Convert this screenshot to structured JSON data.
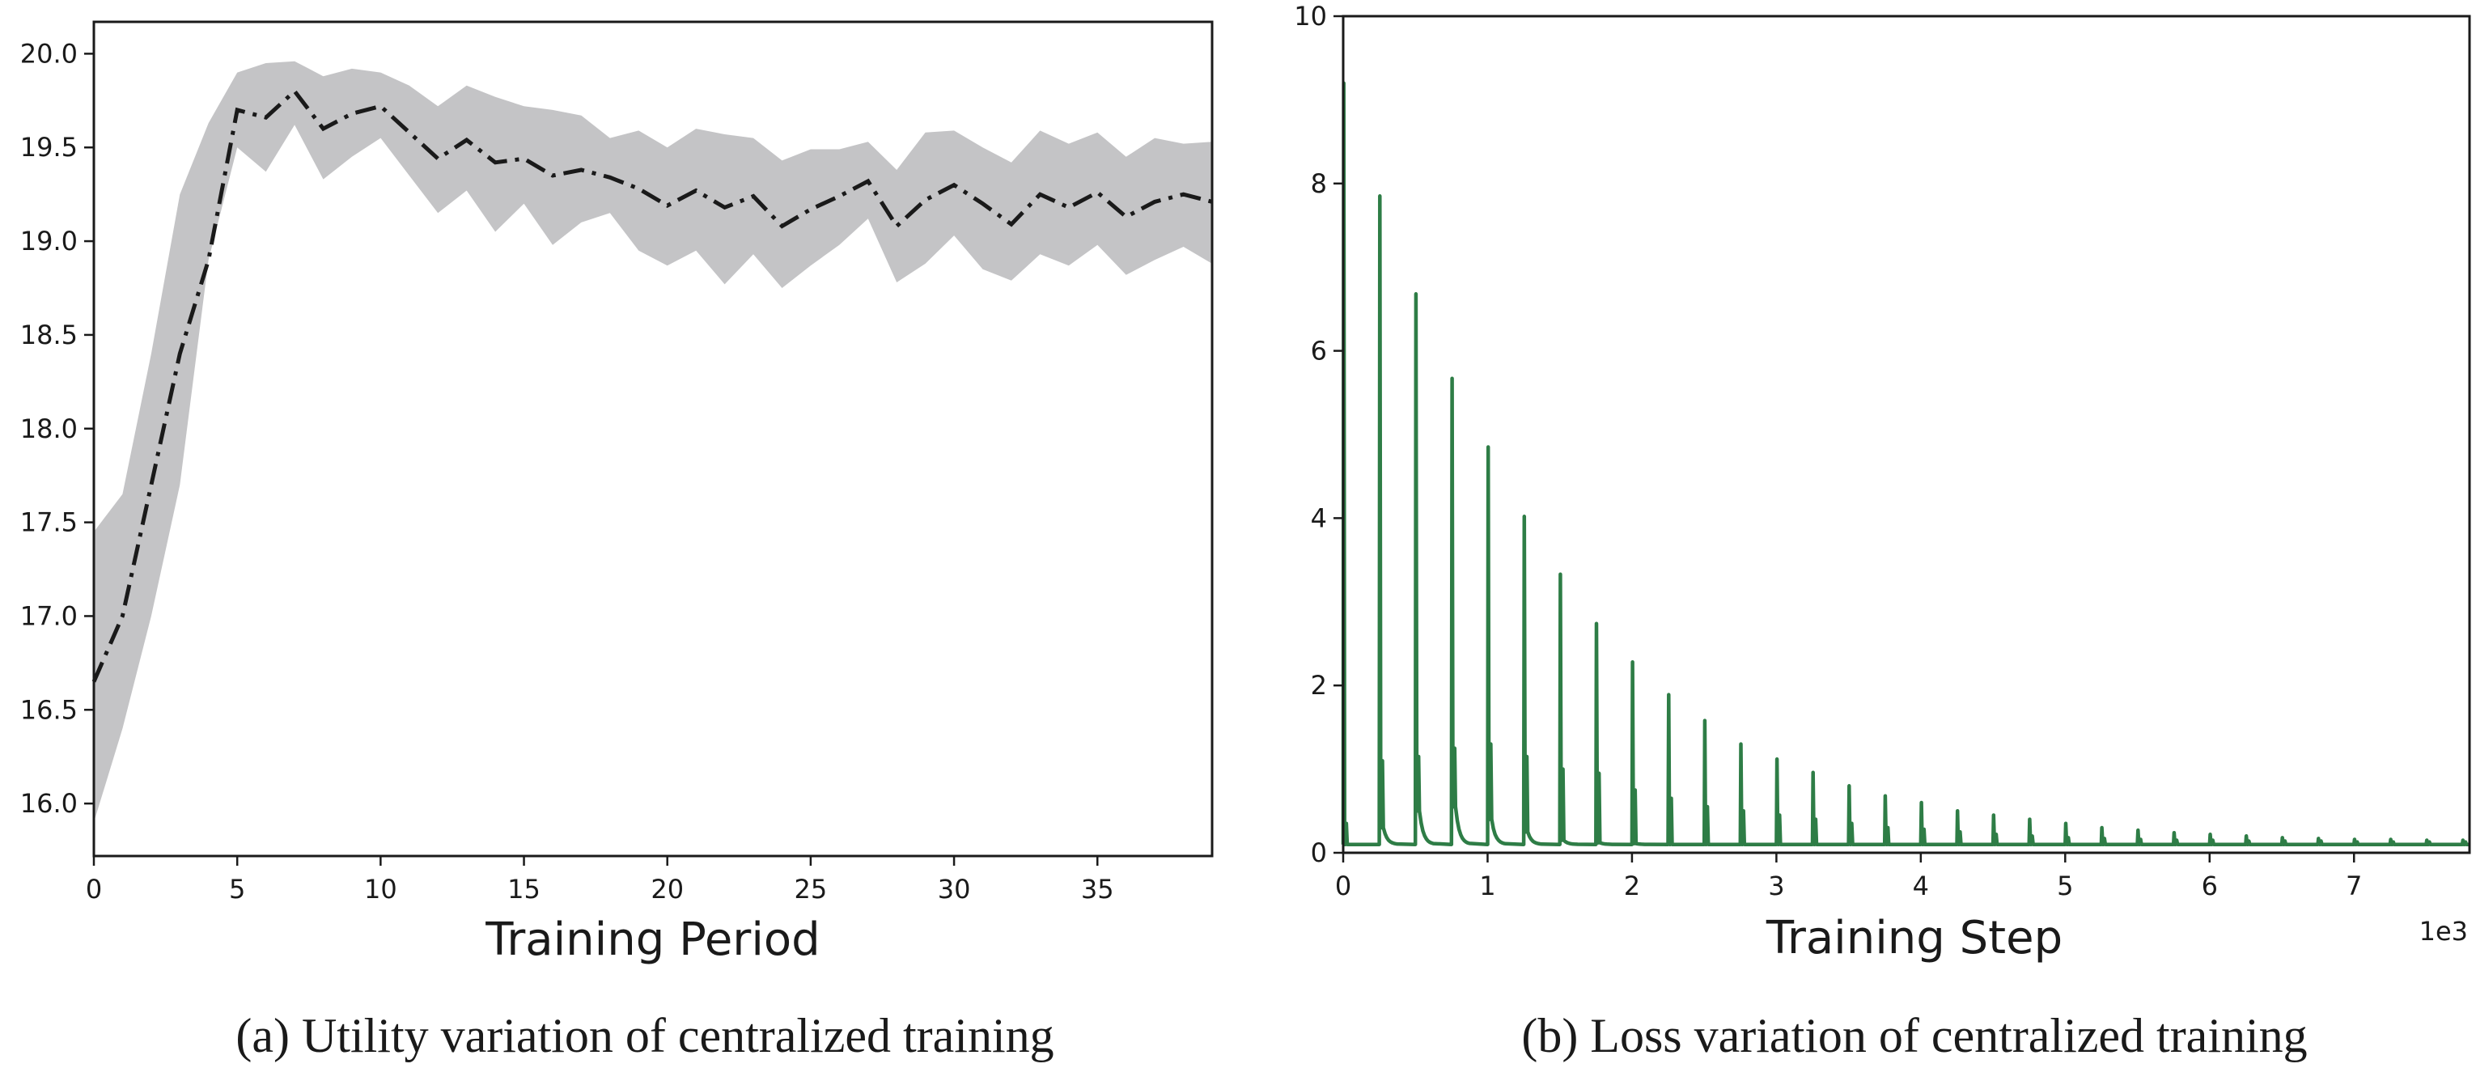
{
  "chart_data": [
    {
      "type": "line",
      "caption": "(a)  Utility variation of centralized training",
      "xlabel": "Training Period",
      "ylabel": "",
      "xlim": [
        0,
        39
      ],
      "ylim": [
        15.72,
        20.17
      ],
      "x_ticks": [
        0,
        5,
        10,
        15,
        20,
        25,
        30,
        35
      ],
      "y_ticks": [
        16.0,
        16.5,
        17.0,
        17.5,
        18.0,
        18.5,
        19.0,
        19.5,
        20.0
      ],
      "y_tick_labels": [
        "16.0",
        "16.5",
        "17.0",
        "17.5",
        "18.0",
        "18.5",
        "19.0",
        "19.5",
        "20.0"
      ],
      "grid": false,
      "line_style": "dash-dot",
      "line_color": "#1a1a1a",
      "band_color": "#c4c4c6",
      "series": [
        {
          "x": [
            0,
            1,
            2,
            3,
            4,
            5,
            6,
            7,
            8,
            9,
            10,
            11,
            12,
            13,
            14,
            15,
            16,
            17,
            18,
            19,
            20,
            21,
            22,
            23,
            24,
            25,
            26,
            27,
            28,
            29,
            30,
            31,
            32,
            33,
            34,
            35,
            36,
            37,
            38,
            39
          ],
          "mean": [
            16.65,
            17.0,
            17.7,
            18.4,
            18.9,
            19.7,
            19.66,
            19.8,
            19.6,
            19.68,
            19.72,
            19.58,
            19.44,
            19.54,
            19.42,
            19.44,
            19.35,
            19.38,
            19.34,
            19.28,
            19.19,
            19.27,
            19.18,
            19.24,
            19.08,
            19.17,
            19.24,
            19.32,
            19.08,
            19.22,
            19.3,
            19.2,
            19.09,
            19.25,
            19.18,
            19.26,
            19.13,
            19.21,
            19.25,
            19.21
          ],
          "lower": [
            15.9,
            16.4,
            17.0,
            17.7,
            18.9,
            19.5,
            19.37,
            19.62,
            19.33,
            19.45,
            19.55,
            19.35,
            19.15,
            19.27,
            19.05,
            19.2,
            18.98,
            19.1,
            19.15,
            18.95,
            18.87,
            18.95,
            18.77,
            18.93,
            18.75,
            18.87,
            18.98,
            19.12,
            18.78,
            18.88,
            19.03,
            18.85,
            18.79,
            18.93,
            18.87,
            18.98,
            18.82,
            18.9,
            18.97,
            18.88
          ],
          "upper": [
            17.45,
            17.65,
            18.4,
            19.25,
            19.63,
            19.9,
            19.95,
            19.96,
            19.88,
            19.92,
            19.9,
            19.83,
            19.72,
            19.83,
            19.77,
            19.72,
            19.7,
            19.67,
            19.55,
            19.59,
            19.5,
            19.6,
            19.57,
            19.55,
            19.43,
            19.49,
            19.49,
            19.53,
            19.38,
            19.58,
            19.59,
            19.5,
            19.42,
            19.59,
            19.52,
            19.58,
            19.45,
            19.55,
            19.52,
            19.53
          ]
        }
      ]
    },
    {
      "type": "line",
      "caption": "(b)  Loss variation of centralized training",
      "xlabel": "Training Step",
      "ylabel": "",
      "x_offset_label": "1e3",
      "xlim": [
        0,
        7.8
      ],
      "ylim": [
        0,
        10
      ],
      "x_ticks": [
        0,
        1,
        2,
        3,
        4,
        5,
        6,
        7
      ],
      "y_ticks": [
        0,
        2,
        4,
        6,
        8,
        10
      ],
      "y_tick_labels": [
        "0",
        "2",
        "4",
        "6",
        "8",
        "10"
      ],
      "grid": false,
      "line_color": "#2e7d46",
      "spike_period": 0.25,
      "series": [
        {
          "spike_x": [
            0,
            0.25,
            0.5,
            0.75,
            1.0,
            1.25,
            1.5,
            1.75,
            2.0,
            2.25,
            2.5,
            2.75,
            3.0,
            3.25,
            3.5,
            3.75,
            4.0,
            4.25,
            4.5,
            4.75,
            5.0,
            5.25,
            5.5,
            5.75,
            6.0,
            6.25,
            6.5,
            6.75,
            7.0,
            7.25,
            7.5,
            7.75
          ],
          "spike_peak": [
            9.2,
            7.85,
            6.68,
            5.67,
            4.85,
            4.02,
            3.33,
            2.74,
            2.28,
            1.89,
            1.58,
            1.3,
            1.12,
            0.96,
            0.8,
            0.68,
            0.6,
            0.5,
            0.45,
            0.4,
            0.35,
            0.3,
            0.27,
            0.24,
            0.22,
            0.2,
            0.18,
            0.17,
            0.16,
            0.16,
            0.15,
            0.15
          ],
          "secondary_peak": [
            0.35,
            1.1,
            1.15,
            1.25,
            1.3,
            1.15,
            1.0,
            0.95,
            0.75,
            0.65,
            0.55,
            0.5,
            0.45,
            0.4,
            0.35,
            0.3,
            0.28,
            0.25,
            0.22,
            0.2,
            0.18,
            0.17,
            0.16,
            0.15,
            0.15,
            0.14,
            0.14,
            0.14,
            0.13,
            0.13,
            0.13,
            0.13
          ],
          "settle_level": [
            0.1,
            0.3,
            0.5,
            0.55,
            0.4,
            0.25,
            0.15,
            0.12,
            0.11,
            0.1,
            0.1,
            0.1,
            0.1,
            0.1,
            0.1,
            0.1,
            0.1,
            0.1,
            0.1,
            0.1,
            0.1,
            0.1,
            0.1,
            0.1,
            0.1,
            0.1,
            0.1,
            0.1,
            0.1,
            0.1,
            0.1,
            0.1
          ],
          "baseline": [
            0.1,
            0.1,
            0.1,
            0.1,
            0.1,
            0.1,
            0.1,
            0.1,
            0.1,
            0.1,
            0.1,
            0.1,
            0.1,
            0.1,
            0.1,
            0.1,
            0.1,
            0.1,
            0.1,
            0.1,
            0.1,
            0.1,
            0.1,
            0.1,
            0.1,
            0.1,
            0.1,
            0.1,
            0.1,
            0.1,
            0.1,
            0.1
          ]
        }
      ]
    }
  ]
}
